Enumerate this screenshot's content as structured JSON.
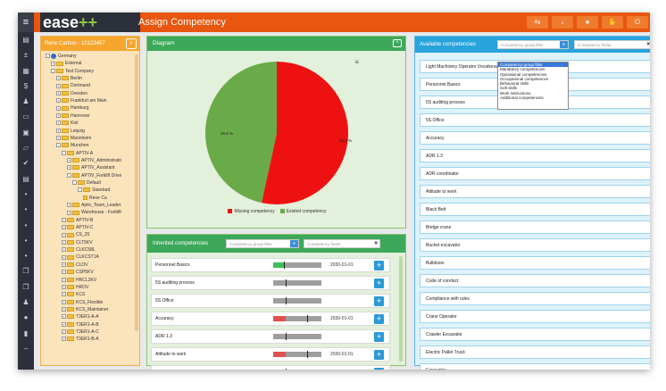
{
  "app": {
    "logo_main": "ease",
    "logo_plus": "++",
    "title": "Assign Competency",
    "toolbar_icons": [
      "person-switch-icon",
      "download-icon",
      "user-icon",
      "handshake-icon",
      "power-icon"
    ],
    "accent": "#e8560f",
    "dark": "#2b303a"
  },
  "sidebar": {
    "icons": [
      "list-icon",
      "sort-icon",
      "table-icon",
      "dollar-icon",
      "users-icon",
      "document-icon",
      "id-card-icon",
      "folder-icon",
      "check-icon",
      "archive-icon",
      "dot-icon",
      "dot-icon",
      "dot-icon",
      "dot-icon",
      "dot-icon",
      "copy-icon",
      "copy-icon",
      "group-icon",
      "person-icon",
      "chart-icon",
      "dash-icon"
    ]
  },
  "tree": {
    "header": "Rene Carbon - 10123457",
    "nodes": [
      {
        "label": "Germany",
        "level": 0,
        "exp": "-",
        "globe": true
      },
      {
        "label": "External",
        "level": 1,
        "exp": "+"
      },
      {
        "label": "Test Company",
        "level": 1,
        "exp": "-"
      },
      {
        "label": "Berlin",
        "level": 2,
        "exp": "+"
      },
      {
        "label": "Dortmund",
        "level": 2,
        "exp": "+"
      },
      {
        "label": "Dresden",
        "level": 2,
        "exp": "+"
      },
      {
        "label": "Frankfurt am Main",
        "level": 2,
        "exp": "+"
      },
      {
        "label": "Hamburg",
        "level": 2,
        "exp": "+"
      },
      {
        "label": "Hannover",
        "level": 2,
        "exp": "+"
      },
      {
        "label": "Kiel",
        "level": 2,
        "exp": "+"
      },
      {
        "label": "Leipzig",
        "level": 2,
        "exp": "+"
      },
      {
        "label": "Mannheim",
        "level": 2,
        "exp": "+"
      },
      {
        "label": "Munchen",
        "level": 2,
        "exp": "-"
      },
      {
        "label": "APTIV-A",
        "level": 3,
        "exp": "-"
      },
      {
        "label": "APTIV_Administrato",
        "level": 4,
        "exp": "+"
      },
      {
        "label": "APTIV_Assistant",
        "level": 4,
        "exp": "+"
      },
      {
        "label": "APTIV_Forklift Drive",
        "level": 4,
        "exp": "-"
      },
      {
        "label": "Default",
        "level": 5,
        "exp": "-"
      },
      {
        "label": "Standard",
        "level": 6,
        "exp": "-"
      },
      {
        "label": "Rene Ca",
        "level": 7,
        "exp": "",
        "person": true
      },
      {
        "label": "Aptiv_Team_Leader",
        "level": 4,
        "exp": "+"
      },
      {
        "label": "Warehouse - Forklift",
        "level": 4,
        "exp": "+"
      },
      {
        "label": "APTIV-B",
        "level": 3,
        "exp": "+"
      },
      {
        "label": "APTIV-C",
        "level": 3,
        "exp": "+"
      },
      {
        "label": "CS_25",
        "level": 3,
        "exp": "+"
      },
      {
        "label": "CLT5KV",
        "level": 3,
        "exp": "+"
      },
      {
        "label": "CLKC58L",
        "level": 3,
        "exp": "+"
      },
      {
        "label": "CLKCST1A",
        "level": 3,
        "exp": "+"
      },
      {
        "label": "CLOV",
        "level": 3,
        "exp": "+"
      },
      {
        "label": "CSP5KV",
        "level": 3,
        "exp": "+"
      },
      {
        "label": "HRCL2KV",
        "level": 3,
        "exp": "+"
      },
      {
        "label": "HROV",
        "level": 3,
        "exp": "+"
      },
      {
        "label": "KCS",
        "level": 3,
        "exp": "+"
      },
      {
        "label": "KCS_Flexible",
        "level": 3,
        "exp": "+"
      },
      {
        "label": "KCS_Maintainer",
        "level": 3,
        "exp": "+"
      },
      {
        "label": "T3ER1-A-A",
        "level": 3,
        "exp": "+"
      },
      {
        "label": "T3ER1-A-B",
        "level": 3,
        "exp": "+"
      },
      {
        "label": "T3ER1-A-C",
        "level": 3,
        "exp": "+"
      },
      {
        "label": "T3ER1-B-A",
        "level": 3,
        "exp": "+"
      }
    ]
  },
  "diagram": {
    "title": "Diagram",
    "menu_icon": "hamburger-icon",
    "pct_existed": "46.6 %",
    "pct_missing": "53.4 %"
  },
  "chart_data": {
    "type": "pie",
    "labels": [
      "Missing competency",
      "Existed competency"
    ],
    "values": [
      53.4,
      46.6
    ],
    "colors": [
      "#ee1111",
      "#6aaa48"
    ]
  },
  "inherited": {
    "title": "Inherited competencies",
    "filter_placeholder": "Competency group filter",
    "finder_placeholder": "Competency finder",
    "rows": [
      {
        "name": "Personnel Basics",
        "fill": 0.22,
        "color": "#3cbf5a",
        "marker": 0.22,
        "date": "2030-01-01"
      },
      {
        "name": "5S auditing process",
        "fill": 0,
        "color": "#9e9e9e",
        "marker": 0.25,
        "date": ""
      },
      {
        "name": "5S Office",
        "fill": 0,
        "color": "#9e9e9e",
        "marker": 0.25,
        "date": ""
      },
      {
        "name": "Accuracy",
        "fill": 0.25,
        "color": "#e05050",
        "marker": 0.7,
        "date": "2030-01-01"
      },
      {
        "name": "ADR 1.3",
        "fill": 0,
        "color": "#9e9e9e",
        "marker": 0.25,
        "date": ""
      },
      {
        "name": "Attitude to work",
        "fill": 0.25,
        "color": "#e05050",
        "marker": 0.7,
        "date": "2030-01-01"
      },
      {
        "name": "Black Belt",
        "fill": 0,
        "color": "#9e9e9e",
        "marker": 0.25,
        "date": ""
      }
    ]
  },
  "available": {
    "title": "Available competencies",
    "filter_value": "Competency group filter",
    "finder_placeholder": "Competency finder",
    "dropdown": [
      "Competency group filter",
      "Mandatory competencies",
      "Operational competencies",
      "Occupational competences",
      "Behavioral skills",
      "Soft skills",
      "Work instructions",
      "Additional competencies"
    ],
    "items": [
      "Light Machinery Operator Vocational Training",
      "Personnel Basics",
      "5S auditing process",
      "5S Office",
      "Accuracy",
      "ADR 1.3",
      "ADR coordinator",
      "Attitude to work",
      "Black Belt",
      "Bridge crane",
      "Bucket excavator",
      "Bulldozer",
      "Code of conduct",
      "Compliance with rules",
      "Crane Operator",
      "Crawler Excavator",
      "Electric Pallet Truck",
      "Excavator"
    ]
  }
}
